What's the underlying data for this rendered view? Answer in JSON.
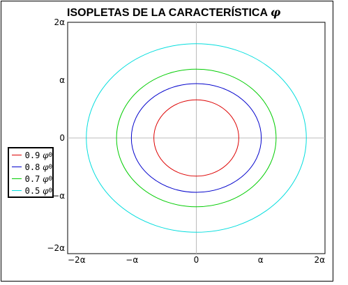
{
  "chart_data": {
    "type": "line",
    "title": "ISOPLETAS DE LA CARACTERÍSTICA",
    "title_symbol": "φ",
    "xlim": [
      -2,
      2
    ],
    "ylim": [
      -2,
      2
    ],
    "units": "α",
    "x_ticks": [
      {
        "value": -2,
        "label": "−2α"
      },
      {
        "value": -1,
        "label": "−α"
      },
      {
        "value": 0,
        "label": "0"
      },
      {
        "value": 1,
        "label": "α"
      },
      {
        "value": 2,
        "label": "2α"
      }
    ],
    "y_ticks": [
      {
        "value": 2,
        "label": "2α"
      },
      {
        "value": 1,
        "label": "α"
      },
      {
        "value": 0,
        "label": "0"
      },
      {
        "value": -1,
        "label": "−α"
      },
      {
        "value": -2,
        "label": "−2α"
      }
    ],
    "grid": "axes-only",
    "legend_position": "left",
    "series": [
      {
        "name": "0.9",
        "symbol": "φ",
        "sub": "0",
        "color": "#dd0000",
        "rx": 0.66,
        "ry": 0.66
      },
      {
        "name": "0.8",
        "symbol": "φ",
        "sub": "0",
        "color": "#0000cc",
        "rx": 1.01,
        "ry": 0.94
      },
      {
        "name": "0.7",
        "symbol": "φ",
        "sub": "0",
        "color": "#00cc00",
        "rx": 1.24,
        "ry": 1.19
      },
      {
        "name": "0.5",
        "symbol": "φ",
        "sub": "0",
        "color": "#00dddd",
        "rx": 1.71,
        "ry": 1.63
      }
    ]
  }
}
